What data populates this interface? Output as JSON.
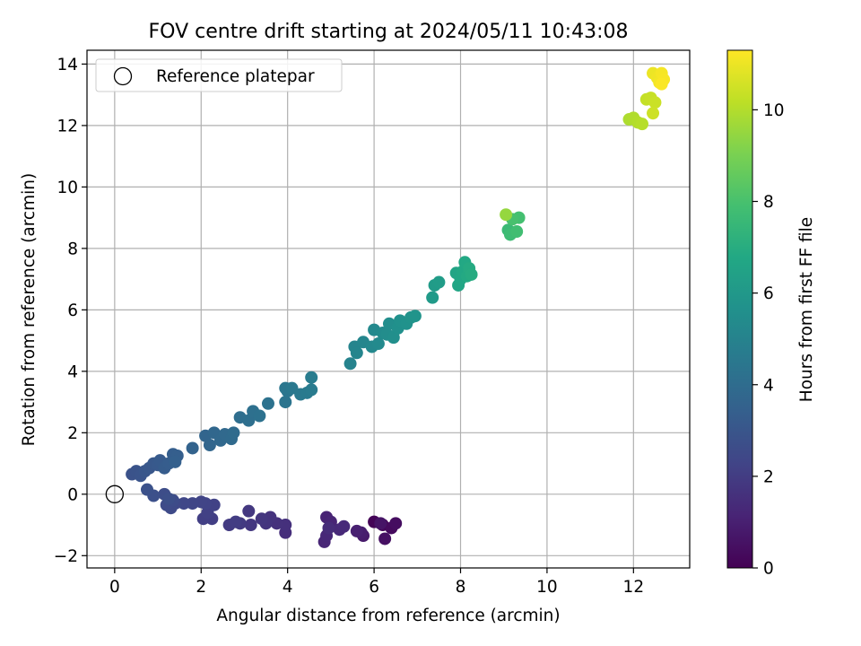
{
  "chart_data": {
    "type": "scatter",
    "title": "FOV centre drift starting at 2024/05/11 10:43:08",
    "xlabel": "Angular distance from reference (arcmin)",
    "ylabel": "Rotation from reference (arcmin)",
    "colorbar_label": "Hours from first FF file",
    "xlim": [
      -0.64,
      13.3
    ],
    "ylim": [
      -2.4,
      14.45
    ],
    "x_ticks": [
      0,
      2,
      4,
      6,
      8,
      10,
      12
    ],
    "y_ticks": [
      -2,
      0,
      2,
      4,
      6,
      8,
      10,
      12,
      14
    ],
    "colorbar_range": [
      0,
      11.3
    ],
    "colorbar_ticks": [
      0,
      2,
      4,
      6,
      8,
      10
    ],
    "colormap": "viridis",
    "grid": true,
    "legend": {
      "position": "top-left",
      "entries": [
        "Reference platepar"
      ]
    },
    "reference_point": {
      "x": 0,
      "y": 0
    },
    "points": [
      {
        "x": 6.0,
        "y": -0.9,
        "h": 0.1
      },
      {
        "x": 6.2,
        "y": -1.0,
        "h": 0.2
      },
      {
        "x": 6.4,
        "y": -1.1,
        "h": 0.3
      },
      {
        "x": 6.5,
        "y": -0.95,
        "h": 0.4
      },
      {
        "x": 6.25,
        "y": -1.45,
        "h": 0.5
      },
      {
        "x": 6.15,
        "y": -0.95,
        "h": 0.6
      },
      {
        "x": 5.75,
        "y": -1.35,
        "h": 0.8
      },
      {
        "x": 5.7,
        "y": -1.25,
        "h": 0.9
      },
      {
        "x": 5.6,
        "y": -1.2,
        "h": 1.0
      },
      {
        "x": 4.9,
        "y": -0.75,
        "h": 1.1
      },
      {
        "x": 5.0,
        "y": -0.9,
        "h": 1.15
      },
      {
        "x": 4.85,
        "y": -1.55,
        "h": 1.2
      },
      {
        "x": 4.9,
        "y": -1.35,
        "h": 1.25
      },
      {
        "x": 5.2,
        "y": -1.15,
        "h": 1.3
      },
      {
        "x": 5.3,
        "y": -1.05,
        "h": 1.35
      },
      {
        "x": 4.95,
        "y": -1.1,
        "h": 1.4
      },
      {
        "x": 3.95,
        "y": -1.25,
        "h": 1.5
      },
      {
        "x": 3.95,
        "y": -1.0,
        "h": 1.55
      },
      {
        "x": 3.75,
        "y": -0.95,
        "h": 1.6
      },
      {
        "x": 3.6,
        "y": -0.75,
        "h": 1.65
      },
      {
        "x": 3.5,
        "y": -0.95,
        "h": 1.7
      },
      {
        "x": 3.4,
        "y": -0.8,
        "h": 1.75
      },
      {
        "x": 3.15,
        "y": -1.0,
        "h": 1.8
      },
      {
        "x": 3.1,
        "y": -0.55,
        "h": 1.85
      },
      {
        "x": 2.9,
        "y": -0.95,
        "h": 1.9
      },
      {
        "x": 2.65,
        "y": -1.0,
        "h": 1.95
      },
      {
        "x": 2.8,
        "y": -0.9,
        "h": 2.0
      },
      {
        "x": 2.25,
        "y": -0.8,
        "h": 2.05
      },
      {
        "x": 2.05,
        "y": -0.8,
        "h": 2.1
      },
      {
        "x": 2.15,
        "y": -0.6,
        "h": 2.15
      },
      {
        "x": 2.3,
        "y": -0.35,
        "h": 2.2
      },
      {
        "x": 2.1,
        "y": -0.3,
        "h": 2.25
      },
      {
        "x": 2.0,
        "y": -0.25,
        "h": 2.3
      },
      {
        "x": 1.8,
        "y": -0.3,
        "h": 2.35
      },
      {
        "x": 1.6,
        "y": -0.3,
        "h": 2.4
      },
      {
        "x": 1.4,
        "y": -0.3,
        "h": 2.45
      },
      {
        "x": 1.3,
        "y": -0.45,
        "h": 2.5
      },
      {
        "x": 1.2,
        "y": -0.35,
        "h": 2.55
      },
      {
        "x": 1.35,
        "y": -0.2,
        "h": 2.6
      },
      {
        "x": 1.15,
        "y": 0.0,
        "h": 2.65
      },
      {
        "x": 1.25,
        "y": -0.15,
        "h": 2.7
      },
      {
        "x": 0.9,
        "y": -0.05,
        "h": 2.75
      },
      {
        "x": 0.75,
        "y": 0.15,
        "h": 2.8
      },
      {
        "x": 0.4,
        "y": 0.65,
        "h": 2.85
      },
      {
        "x": 0.5,
        "y": 0.75,
        "h": 2.9
      },
      {
        "x": 0.6,
        "y": 0.6,
        "h": 2.95
      },
      {
        "x": 0.7,
        "y": 0.75,
        "h": 3.0
      },
      {
        "x": 0.8,
        "y": 0.85,
        "h": 3.05
      },
      {
        "x": 0.9,
        "y": 1.0,
        "h": 3.1
      },
      {
        "x": 1.0,
        "y": 0.95,
        "h": 3.15
      },
      {
        "x": 1.05,
        "y": 1.1,
        "h": 3.2
      },
      {
        "x": 1.15,
        "y": 0.85,
        "h": 3.25
      },
      {
        "x": 1.25,
        "y": 1.0,
        "h": 3.3
      },
      {
        "x": 1.35,
        "y": 1.3,
        "h": 3.35
      },
      {
        "x": 1.45,
        "y": 1.25,
        "h": 3.4
      },
      {
        "x": 1.4,
        "y": 1.05,
        "h": 3.45
      },
      {
        "x": 1.8,
        "y": 1.5,
        "h": 3.55
      },
      {
        "x": 2.1,
        "y": 1.9,
        "h": 3.65
      },
      {
        "x": 2.2,
        "y": 1.6,
        "h": 3.7
      },
      {
        "x": 2.3,
        "y": 2.0,
        "h": 3.75
      },
      {
        "x": 2.45,
        "y": 1.75,
        "h": 3.8
      },
      {
        "x": 2.55,
        "y": 1.95,
        "h": 3.85
      },
      {
        "x": 2.7,
        "y": 1.8,
        "h": 3.9
      },
      {
        "x": 2.75,
        "y": 2.0,
        "h": 3.95
      },
      {
        "x": 2.9,
        "y": 2.5,
        "h": 4.05
      },
      {
        "x": 3.1,
        "y": 2.4,
        "h": 4.1
      },
      {
        "x": 3.2,
        "y": 2.7,
        "h": 4.15
      },
      {
        "x": 3.35,
        "y": 2.55,
        "h": 4.2
      },
      {
        "x": 3.55,
        "y": 2.95,
        "h": 4.25
      },
      {
        "x": 3.95,
        "y": 3.0,
        "h": 4.35
      },
      {
        "x": 4.0,
        "y": 3.35,
        "h": 4.4
      },
      {
        "x": 3.95,
        "y": 3.45,
        "h": 4.45
      },
      {
        "x": 4.1,
        "y": 3.45,
        "h": 4.5
      },
      {
        "x": 4.3,
        "y": 3.25,
        "h": 4.55
      },
      {
        "x": 4.45,
        "y": 3.3,
        "h": 4.6
      },
      {
        "x": 4.55,
        "y": 3.4,
        "h": 4.65
      },
      {
        "x": 4.55,
        "y": 3.8,
        "h": 4.7
      },
      {
        "x": 5.45,
        "y": 4.25,
        "h": 5.0
      },
      {
        "x": 5.55,
        "y": 4.8,
        "h": 5.05
      },
      {
        "x": 5.6,
        "y": 4.6,
        "h": 5.1
      },
      {
        "x": 5.75,
        "y": 4.95,
        "h": 5.15
      },
      {
        "x": 5.95,
        "y": 4.8,
        "h": 5.25
      },
      {
        "x": 6.0,
        "y": 5.35,
        "h": 5.3
      },
      {
        "x": 6.1,
        "y": 4.9,
        "h": 5.35
      },
      {
        "x": 6.2,
        "y": 5.25,
        "h": 5.4
      },
      {
        "x": 6.3,
        "y": 5.2,
        "h": 5.45
      },
      {
        "x": 6.35,
        "y": 5.55,
        "h": 5.5
      },
      {
        "x": 6.45,
        "y": 5.1,
        "h": 5.55
      },
      {
        "x": 6.55,
        "y": 5.4,
        "h": 5.6
      },
      {
        "x": 6.6,
        "y": 5.65,
        "h": 5.65
      },
      {
        "x": 6.75,
        "y": 5.55,
        "h": 5.7
      },
      {
        "x": 6.85,
        "y": 5.75,
        "h": 5.75
      },
      {
        "x": 6.95,
        "y": 5.8,
        "h": 5.8
      },
      {
        "x": 7.35,
        "y": 6.4,
        "h": 6.1
      },
      {
        "x": 7.4,
        "y": 6.8,
        "h": 6.15
      },
      {
        "x": 7.5,
        "y": 6.9,
        "h": 6.2
      },
      {
        "x": 7.9,
        "y": 7.2,
        "h": 6.6
      },
      {
        "x": 7.95,
        "y": 6.8,
        "h": 6.65
      },
      {
        "x": 8.0,
        "y": 7.0,
        "h": 6.7
      },
      {
        "x": 8.05,
        "y": 7.25,
        "h": 6.75
      },
      {
        "x": 8.1,
        "y": 7.55,
        "h": 6.8
      },
      {
        "x": 8.15,
        "y": 7.1,
        "h": 6.85
      },
      {
        "x": 8.2,
        "y": 7.35,
        "h": 6.9
      },
      {
        "x": 8.25,
        "y": 7.15,
        "h": 6.95
      },
      {
        "x": 9.1,
        "y": 8.6,
        "h": 7.6
      },
      {
        "x": 9.15,
        "y": 8.45,
        "h": 7.7
      },
      {
        "x": 9.3,
        "y": 8.55,
        "h": 7.8
      },
      {
        "x": 9.35,
        "y": 9.0,
        "h": 7.9
      },
      {
        "x": 9.2,
        "y": 8.95,
        "h": 8.0
      },
      {
        "x": 9.05,
        "y": 9.1,
        "h": 9.5
      },
      {
        "x": 11.9,
        "y": 12.2,
        "h": 9.9
      },
      {
        "x": 12.0,
        "y": 12.25,
        "h": 9.95
      },
      {
        "x": 12.1,
        "y": 12.1,
        "h": 10.0
      },
      {
        "x": 12.2,
        "y": 12.05,
        "h": 10.05
      },
      {
        "x": 12.3,
        "y": 12.85,
        "h": 10.3
      },
      {
        "x": 12.4,
        "y": 12.9,
        "h": 10.35
      },
      {
        "x": 12.5,
        "y": 12.75,
        "h": 10.4
      },
      {
        "x": 12.45,
        "y": 12.4,
        "h": 10.45
      },
      {
        "x": 12.45,
        "y": 13.7,
        "h": 11.0
      },
      {
        "x": 12.55,
        "y": 13.55,
        "h": 11.05
      },
      {
        "x": 12.6,
        "y": 13.4,
        "h": 11.1
      },
      {
        "x": 12.65,
        "y": 13.7,
        "h": 11.15
      },
      {
        "x": 12.7,
        "y": 13.5,
        "h": 11.2
      },
      {
        "x": 12.65,
        "y": 13.35,
        "h": 11.25
      }
    ]
  }
}
